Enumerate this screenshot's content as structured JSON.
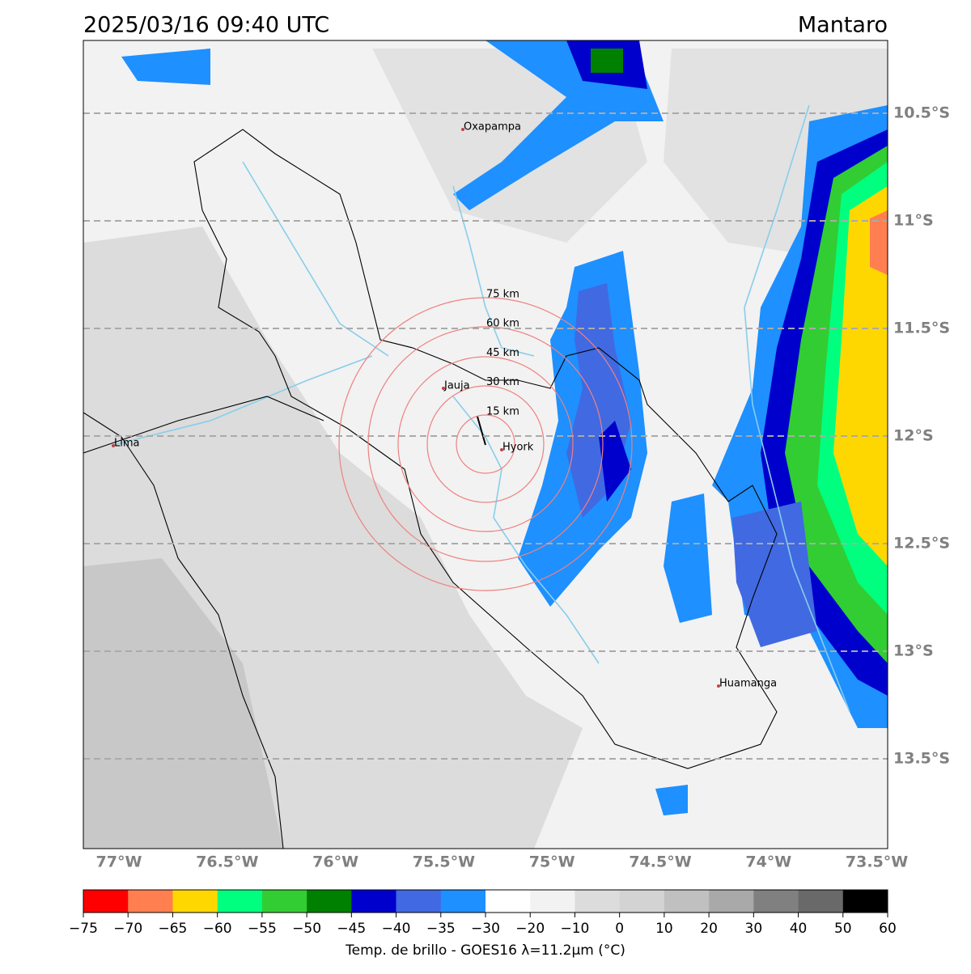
{
  "header": {
    "title": "2025/03/16 09:40 UTC",
    "region": "Mantaro"
  },
  "map": {
    "latitude_labels": [
      "10.5°S",
      "11°S",
      "11.5°S",
      "12°S",
      "12.5°S",
      "13°S",
      "13.5°S"
    ],
    "longitude_labels": [
      "77°W",
      "76.5°W",
      "76°W",
      "75.5°W",
      "75°W",
      "74.5°W",
      "74°W",
      "73.5°W"
    ],
    "cities": [
      "Oxapampa",
      "Jauja",
      "Hyork",
      "Lima",
      "Huamanga"
    ],
    "range_rings": [
      "15 km",
      "30 km",
      "45 km",
      "60 km",
      "75 km"
    ]
  },
  "colorbar": {
    "ticks": [
      "−75",
      "−70",
      "−65",
      "−60",
      "−55",
      "−50",
      "−45",
      "−40",
      "−35",
      "−30",
      "−20",
      "−10",
      "0",
      "10",
      "20",
      "30",
      "40",
      "50",
      "60"
    ],
    "colors": [
      "#ff0000",
      "#ff7f50",
      "#ffd700",
      "#00ff7f",
      "#32cd32",
      "#008000",
      "#0000cd",
      "#4169e1",
      "#1e90ff",
      "#ffffff",
      "#f2f2f2",
      "#dcdcdc",
      "#d3d3d3",
      "#c0c0c0",
      "#a9a9a9",
      "#808080",
      "#696969",
      "#000000"
    ],
    "caption": "Temp. de brillo - GOES16 λ=11.2μm (°C)"
  }
}
